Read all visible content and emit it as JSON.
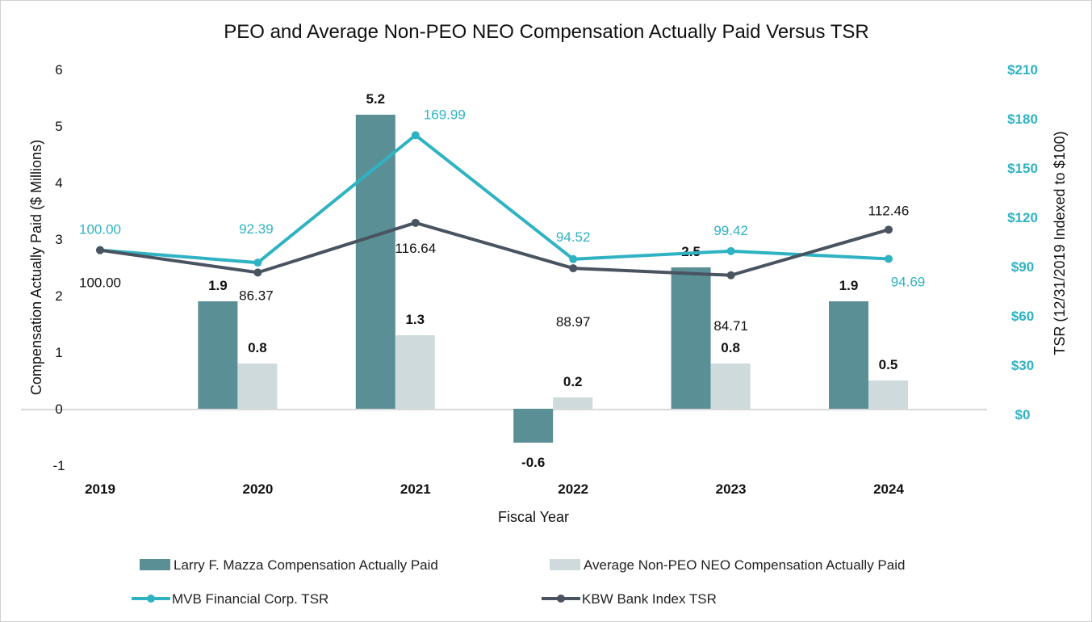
{
  "chart_data": {
    "type": "bar+line",
    "title": "PEO and Average Non-PEO NEO Compensation Actually Paid Versus TSR",
    "xlabel": "Fiscal Year",
    "ylabel": "Compensation Actually Paid ($ Millions)",
    "y2label": "TSR (12/31/2019 Indexed to $100)",
    "categories": [
      "2019",
      "2020",
      "2021",
      "2022",
      "2023",
      "2024"
    ],
    "ylim": [
      -1,
      6
    ],
    "yticks": [
      "6",
      "5",
      "4",
      "3",
      "2",
      "1",
      "0",
      "-1"
    ],
    "y2lim": [
      0,
      210
    ],
    "y2ticks": [
      "$210",
      "$180",
      "$150",
      "$120",
      "$90",
      "$60",
      "$30",
      "$0"
    ],
    "grid": false,
    "legend": "bottom",
    "series": [
      {
        "name": "Larry F. Mazza Compensation Actually Paid",
        "kind": "bar",
        "axis": "left",
        "color": "#5a8f95",
        "values": [
          null,
          1.9,
          5.2,
          -0.6,
          2.5,
          1.9
        ],
        "labels": [
          "",
          "1.9",
          "5.2",
          "-0.6",
          "2.5",
          "1.9"
        ]
      },
      {
        "name": "Average Non-PEO NEO Compensation Actually Paid",
        "kind": "bar",
        "axis": "left",
        "color": "#cfdadd",
        "values": [
          null,
          0.8,
          1.3,
          0.2,
          0.8,
          0.5
        ],
        "labels": [
          "",
          "0.8",
          "1.3",
          "0.2",
          "0.8",
          "0.5"
        ]
      },
      {
        "name": "MVB Financial Corp. TSR",
        "kind": "line",
        "axis": "right",
        "color": "#2fb3c3",
        "values": [
          100.0,
          92.39,
          169.99,
          94.52,
          99.42,
          94.69
        ],
        "labels": [
          "100.00",
          "92.39",
          "169.99",
          "94.52",
          "99.42",
          "94.69"
        ]
      },
      {
        "name": "KBW Bank Index TSR",
        "kind": "line",
        "axis": "right",
        "color": "#4a5360",
        "values": [
          100.0,
          86.37,
          116.64,
          88.97,
          84.71,
          112.46
        ],
        "labels": [
          "100.00",
          "86.37",
          "116.64",
          "88.97",
          "84.71",
          "112.46"
        ]
      }
    ]
  }
}
